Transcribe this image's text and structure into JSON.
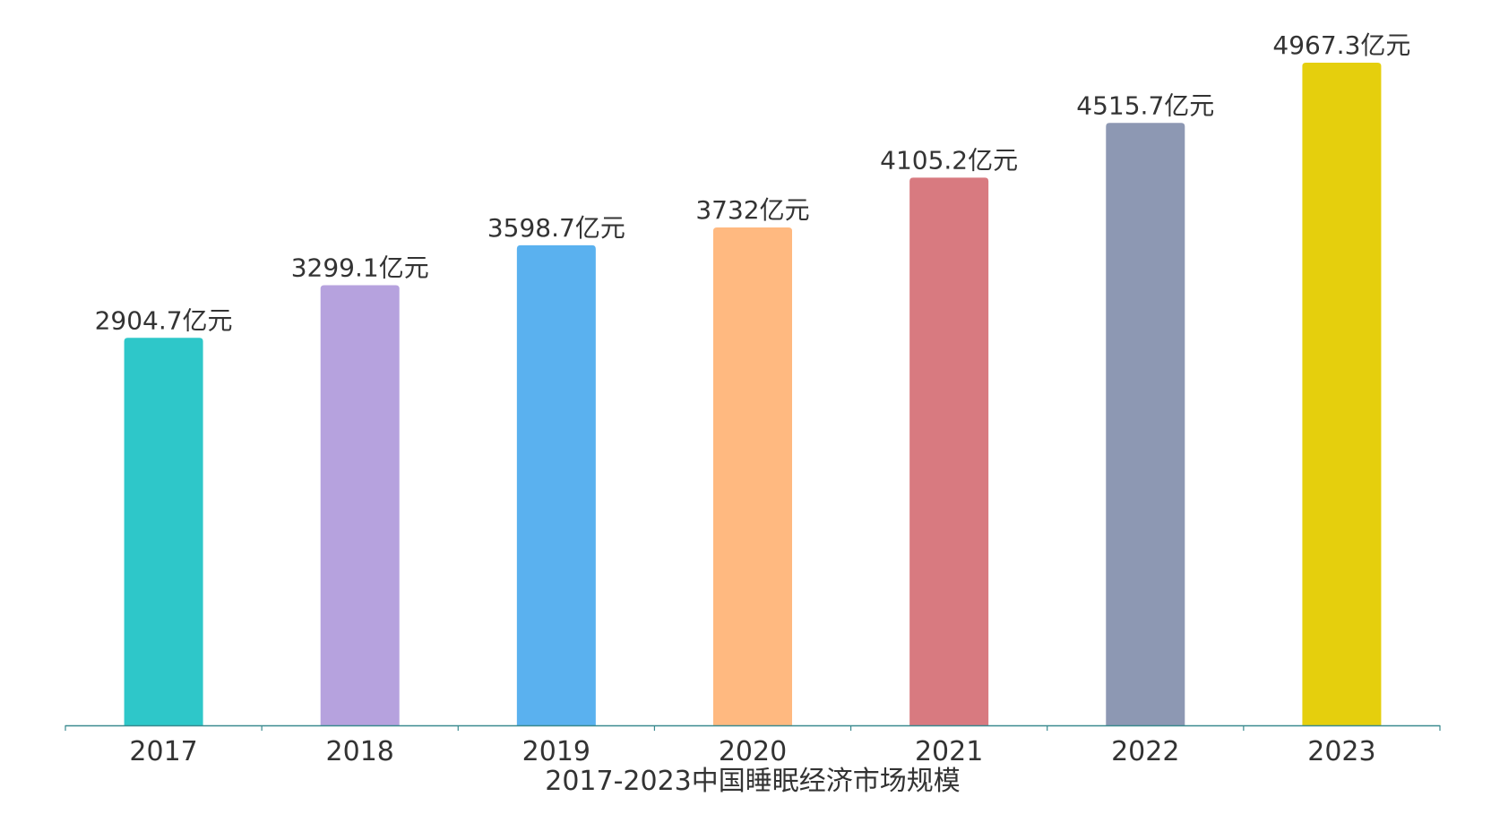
{
  "chart_data": {
    "type": "bar",
    "categories": [
      "2017",
      "2018",
      "2019",
      "2020",
      "2021",
      "2022",
      "2023"
    ],
    "values": [
      2904.7,
      3299.1,
      3598.7,
      3732,
      4105.2,
      4515.7,
      4967.3
    ],
    "data_labels": [
      "2904.7亿元",
      "3299.1亿元",
      "3598.7亿元",
      "3732亿元",
      "4105.2亿元",
      "4515.7亿元",
      "4967.3亿元"
    ],
    "colors": [
      "#2EC7C9",
      "#B6A2DE",
      "#5AB1EF",
      "#FFB980",
      "#D87A80",
      "#8D98B3",
      "#E5CF0D"
    ],
    "title": "",
    "xlabel": "2017-2023中国睡眠经济市场规模",
    "ylabel": "",
    "ylim": [
      0,
      5000
    ],
    "axis_color": "#3a8a8f",
    "grid": false,
    "legend": "none"
  }
}
